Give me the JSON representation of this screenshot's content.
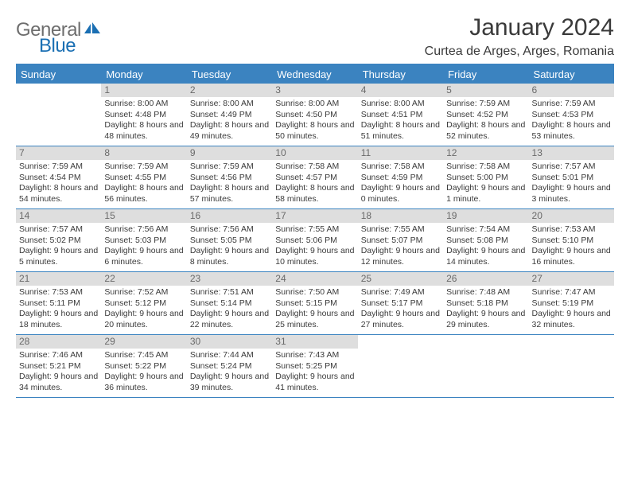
{
  "logo": {
    "text1": "General",
    "text2": "Blue"
  },
  "title": "January 2024",
  "location": "Curtea de Arges, Arges, Romania",
  "colors": {
    "header_bg": "#3b83c0",
    "header_text": "#ffffff",
    "daybar_bg": "#dedede",
    "daynum_color": "#6a6a6a",
    "body_text": "#3a3a3a",
    "rule": "#3b83c0",
    "logo_gray": "#6e6e6e",
    "logo_blue": "#1a6fb3",
    "page_bg": "#ffffff"
  },
  "typography": {
    "title_fontsize": 30,
    "location_fontsize": 16,
    "dow_fontsize": 13,
    "daynum_fontsize": 12,
    "body_fontsize": 10.5
  },
  "days_of_week": [
    "Sunday",
    "Monday",
    "Tuesday",
    "Wednesday",
    "Thursday",
    "Friday",
    "Saturday"
  ],
  "weeks": [
    [
      {
        "n": "",
        "sunrise": "",
        "sunset": "",
        "daylight": ""
      },
      {
        "n": "1",
        "sunrise": "Sunrise: 8:00 AM",
        "sunset": "Sunset: 4:48 PM",
        "daylight": "Daylight: 8 hours and 48 minutes."
      },
      {
        "n": "2",
        "sunrise": "Sunrise: 8:00 AM",
        "sunset": "Sunset: 4:49 PM",
        "daylight": "Daylight: 8 hours and 49 minutes."
      },
      {
        "n": "3",
        "sunrise": "Sunrise: 8:00 AM",
        "sunset": "Sunset: 4:50 PM",
        "daylight": "Daylight: 8 hours and 50 minutes."
      },
      {
        "n": "4",
        "sunrise": "Sunrise: 8:00 AM",
        "sunset": "Sunset: 4:51 PM",
        "daylight": "Daylight: 8 hours and 51 minutes."
      },
      {
        "n": "5",
        "sunrise": "Sunrise: 7:59 AM",
        "sunset": "Sunset: 4:52 PM",
        "daylight": "Daylight: 8 hours and 52 minutes."
      },
      {
        "n": "6",
        "sunrise": "Sunrise: 7:59 AM",
        "sunset": "Sunset: 4:53 PM",
        "daylight": "Daylight: 8 hours and 53 minutes."
      }
    ],
    [
      {
        "n": "7",
        "sunrise": "Sunrise: 7:59 AM",
        "sunset": "Sunset: 4:54 PM",
        "daylight": "Daylight: 8 hours and 54 minutes."
      },
      {
        "n": "8",
        "sunrise": "Sunrise: 7:59 AM",
        "sunset": "Sunset: 4:55 PM",
        "daylight": "Daylight: 8 hours and 56 minutes."
      },
      {
        "n": "9",
        "sunrise": "Sunrise: 7:59 AM",
        "sunset": "Sunset: 4:56 PM",
        "daylight": "Daylight: 8 hours and 57 minutes."
      },
      {
        "n": "10",
        "sunrise": "Sunrise: 7:58 AM",
        "sunset": "Sunset: 4:57 PM",
        "daylight": "Daylight: 8 hours and 58 minutes."
      },
      {
        "n": "11",
        "sunrise": "Sunrise: 7:58 AM",
        "sunset": "Sunset: 4:59 PM",
        "daylight": "Daylight: 9 hours and 0 minutes."
      },
      {
        "n": "12",
        "sunrise": "Sunrise: 7:58 AM",
        "sunset": "Sunset: 5:00 PM",
        "daylight": "Daylight: 9 hours and 1 minute."
      },
      {
        "n": "13",
        "sunrise": "Sunrise: 7:57 AM",
        "sunset": "Sunset: 5:01 PM",
        "daylight": "Daylight: 9 hours and 3 minutes."
      }
    ],
    [
      {
        "n": "14",
        "sunrise": "Sunrise: 7:57 AM",
        "sunset": "Sunset: 5:02 PM",
        "daylight": "Daylight: 9 hours and 5 minutes."
      },
      {
        "n": "15",
        "sunrise": "Sunrise: 7:56 AM",
        "sunset": "Sunset: 5:03 PM",
        "daylight": "Daylight: 9 hours and 6 minutes."
      },
      {
        "n": "16",
        "sunrise": "Sunrise: 7:56 AM",
        "sunset": "Sunset: 5:05 PM",
        "daylight": "Daylight: 9 hours and 8 minutes."
      },
      {
        "n": "17",
        "sunrise": "Sunrise: 7:55 AM",
        "sunset": "Sunset: 5:06 PM",
        "daylight": "Daylight: 9 hours and 10 minutes."
      },
      {
        "n": "18",
        "sunrise": "Sunrise: 7:55 AM",
        "sunset": "Sunset: 5:07 PM",
        "daylight": "Daylight: 9 hours and 12 minutes."
      },
      {
        "n": "19",
        "sunrise": "Sunrise: 7:54 AM",
        "sunset": "Sunset: 5:08 PM",
        "daylight": "Daylight: 9 hours and 14 minutes."
      },
      {
        "n": "20",
        "sunrise": "Sunrise: 7:53 AM",
        "sunset": "Sunset: 5:10 PM",
        "daylight": "Daylight: 9 hours and 16 minutes."
      }
    ],
    [
      {
        "n": "21",
        "sunrise": "Sunrise: 7:53 AM",
        "sunset": "Sunset: 5:11 PM",
        "daylight": "Daylight: 9 hours and 18 minutes."
      },
      {
        "n": "22",
        "sunrise": "Sunrise: 7:52 AM",
        "sunset": "Sunset: 5:12 PM",
        "daylight": "Daylight: 9 hours and 20 minutes."
      },
      {
        "n": "23",
        "sunrise": "Sunrise: 7:51 AM",
        "sunset": "Sunset: 5:14 PM",
        "daylight": "Daylight: 9 hours and 22 minutes."
      },
      {
        "n": "24",
        "sunrise": "Sunrise: 7:50 AM",
        "sunset": "Sunset: 5:15 PM",
        "daylight": "Daylight: 9 hours and 25 minutes."
      },
      {
        "n": "25",
        "sunrise": "Sunrise: 7:49 AM",
        "sunset": "Sunset: 5:17 PM",
        "daylight": "Daylight: 9 hours and 27 minutes."
      },
      {
        "n": "26",
        "sunrise": "Sunrise: 7:48 AM",
        "sunset": "Sunset: 5:18 PM",
        "daylight": "Daylight: 9 hours and 29 minutes."
      },
      {
        "n": "27",
        "sunrise": "Sunrise: 7:47 AM",
        "sunset": "Sunset: 5:19 PM",
        "daylight": "Daylight: 9 hours and 32 minutes."
      }
    ],
    [
      {
        "n": "28",
        "sunrise": "Sunrise: 7:46 AM",
        "sunset": "Sunset: 5:21 PM",
        "daylight": "Daylight: 9 hours and 34 minutes."
      },
      {
        "n": "29",
        "sunrise": "Sunrise: 7:45 AM",
        "sunset": "Sunset: 5:22 PM",
        "daylight": "Daylight: 9 hours and 36 minutes."
      },
      {
        "n": "30",
        "sunrise": "Sunrise: 7:44 AM",
        "sunset": "Sunset: 5:24 PM",
        "daylight": "Daylight: 9 hours and 39 minutes."
      },
      {
        "n": "31",
        "sunrise": "Sunrise: 7:43 AM",
        "sunset": "Sunset: 5:25 PM",
        "daylight": "Daylight: 9 hours and 41 minutes."
      },
      {
        "n": "",
        "sunrise": "",
        "sunset": "",
        "daylight": ""
      },
      {
        "n": "",
        "sunrise": "",
        "sunset": "",
        "daylight": ""
      },
      {
        "n": "",
        "sunrise": "",
        "sunset": "",
        "daylight": ""
      }
    ]
  ]
}
